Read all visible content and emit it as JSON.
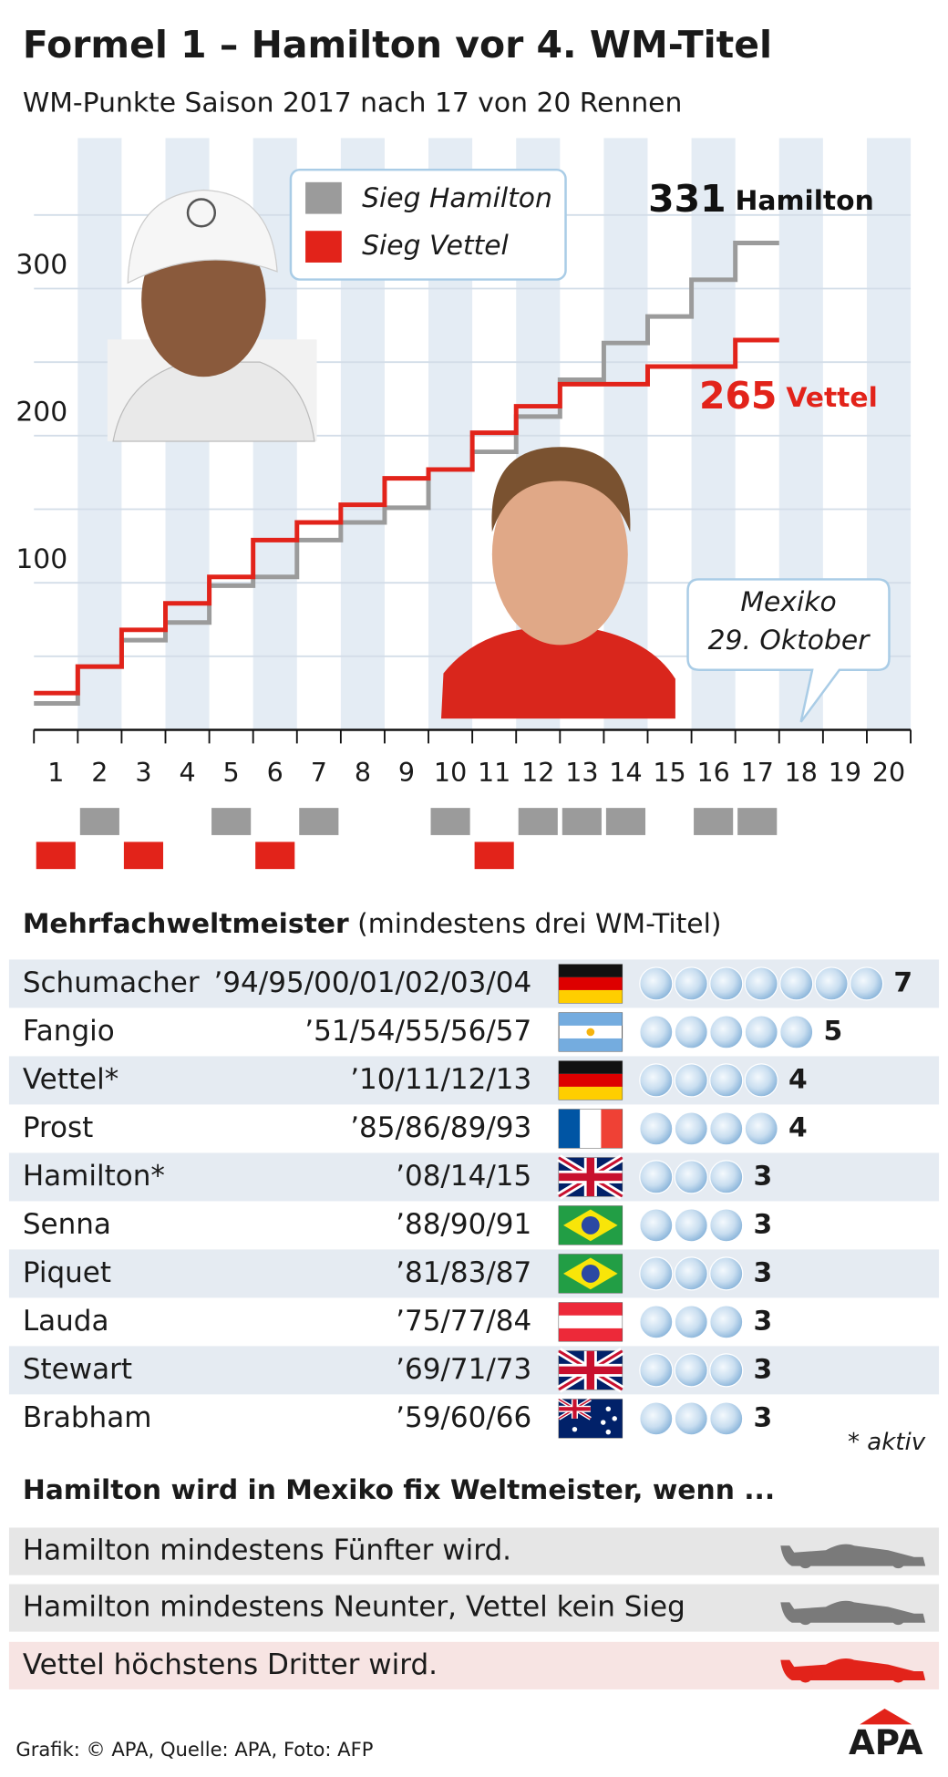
{
  "title": "Formel 1 – Hamilton vor 4. WM-Titel",
  "subtitle": "WM-Punkte Saison 2017 nach 17 von 20 Rennen",
  "chart_data": {
    "type": "step",
    "categories": [
      "1",
      "2",
      "3",
      "4",
      "5",
      "6",
      "7",
      "8",
      "9",
      "10",
      "11",
      "12",
      "13",
      "14",
      "15",
      "16",
      "17",
      "18",
      "19",
      "20"
    ],
    "series": [
      {
        "name": "Hamilton",
        "legend_label": "Sieg Hamilton",
        "color": "#9b9b9b",
        "label_color": "#111111",
        "values": [
          18,
          43,
          61,
          73,
          98,
          104,
          129,
          141,
          151,
          177,
          189,
          213,
          238,
          263,
          281,
          306,
          331,
          null,
          null,
          null
        ],
        "wins": [
          2,
          5,
          7,
          10,
          12,
          13,
          14,
          16,
          17
        ]
      },
      {
        "name": "Vettel",
        "legend_label": "Sieg Vettel",
        "color": "#e2231a",
        "label_color": "#e2231a",
        "values": [
          25,
          43,
          68,
          86,
          104,
          129,
          141,
          153,
          171,
          177,
          202,
          220,
          235,
          235,
          247,
          247,
          265,
          null,
          null,
          null
        ],
        "wins": [
          1,
          3,
          6,
          11
        ]
      }
    ],
    "ylim": [
      0,
      400
    ],
    "yticks": [
      100,
      200,
      300
    ],
    "minor_yticks": [
      50,
      150,
      250,
      350
    ],
    "grid": true,
    "annotation": {
      "lines": [
        "Mexiko",
        "29. Oktober"
      ]
    }
  },
  "table": {
    "heading_bold": "Mehrfachweltmeister",
    "heading_rest": " (mindestens drei WM-Titel)",
    "rows": [
      {
        "name": "Schumacher",
        "years": "’94/95/00/01/02/03/04",
        "flag": "de",
        "titles": 7
      },
      {
        "name": "Fangio",
        "years": "’51/54/55/56/57",
        "flag": "ar",
        "titles": 5
      },
      {
        "name": "Vettel*",
        "years": "’10/11/12/13",
        "flag": "de",
        "titles": 4
      },
      {
        "name": "Prost",
        "years": "’85/86/89/93",
        "flag": "fr",
        "titles": 4
      },
      {
        "name": "Hamilton*",
        "years": "’08/14/15",
        "flag": "gb",
        "titles": 3
      },
      {
        "name": "Senna",
        "years": "’88/90/91",
        "flag": "br",
        "titles": 3
      },
      {
        "name": "Piquet",
        "years": "’81/83/87",
        "flag": "br",
        "titles": 3
      },
      {
        "name": "Lauda",
        "years": "’75/77/84",
        "flag": "at",
        "titles": 3
      },
      {
        "name": "Stewart",
        "years": "’69/71/73",
        "flag": "gb",
        "titles": 3
      },
      {
        "name": "Brabham",
        "years": "’59/60/66",
        "flag": "au",
        "titles": 3
      }
    ],
    "footnote": "* aktiv"
  },
  "conditions": {
    "title": "Hamilton wird in Mexiko fix Weltmeister, wenn ...",
    "rows": [
      {
        "text": "Hamilton mindestens Fünfter wird.",
        "color": "#7a7a7a"
      },
      {
        "text": "Hamilton mindestens Neunter, Vettel kein Sieg",
        "color": "#7a7a7a"
      },
      {
        "text": "Vettel höchstens Dritter wird.",
        "color": "#e2231a"
      }
    ]
  },
  "footer": {
    "source": "Grafik: © APA, Quelle: APA, Foto: AFP",
    "logo": "APA"
  }
}
